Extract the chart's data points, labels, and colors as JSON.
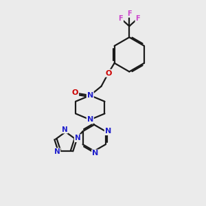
{
  "bg_color": "#ebebeb",
  "bond_color": "#1a1a1a",
  "N_color": "#2020cc",
  "O_color": "#cc0000",
  "F_color": "#cc44cc",
  "line_width": 1.6,
  "xlim": [
    0,
    10
  ],
  "ylim": [
    0,
    10
  ]
}
